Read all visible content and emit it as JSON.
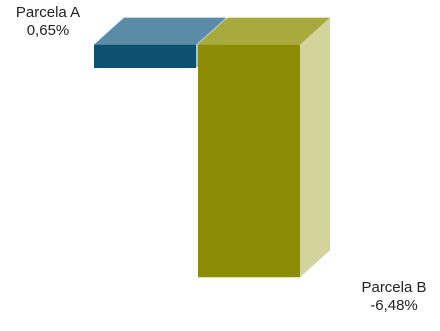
{
  "chart_data": {
    "type": "bar",
    "style": "3d-waterfall",
    "categories": [
      "Parcela A",
      "Parcela B"
    ],
    "values": [
      0.65,
      -6.48
    ],
    "data_labels": [
      "0,65%",
      "-6,48%"
    ],
    "colors": {
      "Parcela A": {
        "front": "#0e5070",
        "top": "#5a8ca8",
        "side": "#a6c3d3"
      },
      "Parcela B": {
        "front": "#8c8c05",
        "top": "#a8aa3e",
        "side": "#d3d39c"
      }
    },
    "title": "",
    "xlabel": "",
    "ylabel": "",
    "grid": false,
    "legend": "none"
  }
}
